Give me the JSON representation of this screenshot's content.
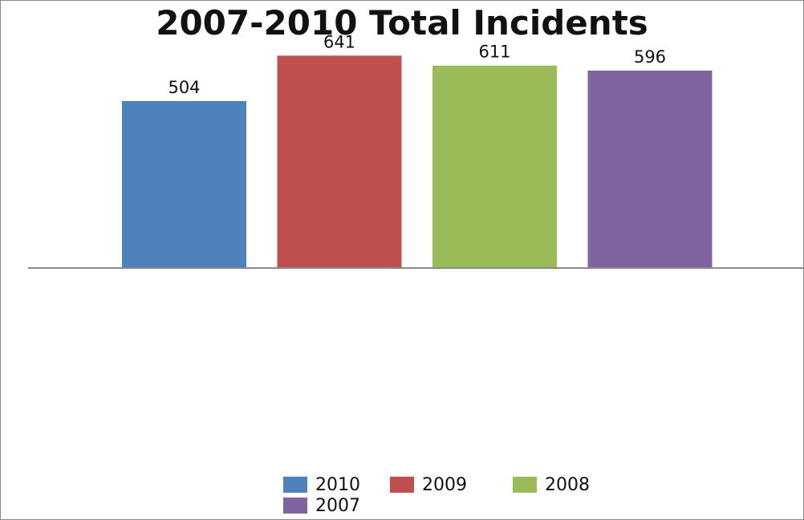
{
  "chart_data": {
    "type": "bar",
    "title": "2007-2010 Total Incidents",
    "categories": [
      "2010",
      "2009",
      "2008",
      "2007"
    ],
    "values": [
      504,
      641,
      611,
      596
    ],
    "colors": [
      "#4f81bd",
      "#c0504d",
      "#9bbb59",
      "#8064a2"
    ],
    "ylim": [
      0,
      700
    ],
    "grid": false,
    "axes_visible": false,
    "data_labels": true,
    "legend": {
      "position": "bottom",
      "entries": [
        "2010",
        "2009",
        "2008",
        "2007"
      ]
    }
  }
}
